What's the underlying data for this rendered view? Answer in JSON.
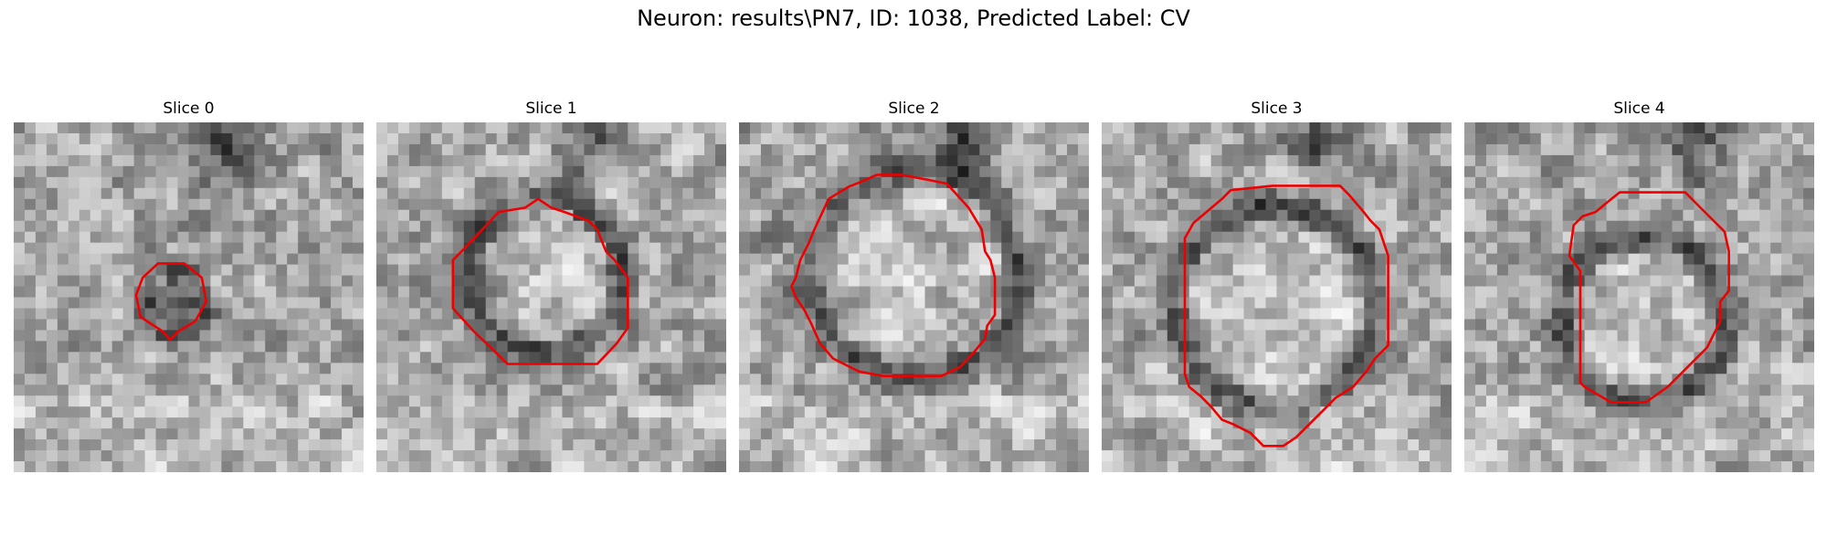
{
  "figure": {
    "title": "Neuron: results\\PN7, ID: 1038, Predicted Label: CV"
  },
  "panels": [
    {
      "title": "Slice 0",
      "contour_color": "#ee0000"
    },
    {
      "title": "Slice 1",
      "contour_color": "#ee0000"
    },
    {
      "title": "Slice 2",
      "contour_color": "#ee0000"
    },
    {
      "title": "Slice 3",
      "contour_color": "#ee0000"
    },
    {
      "title": "Slice 4",
      "contour_color": "#ee0000"
    }
  ]
}
